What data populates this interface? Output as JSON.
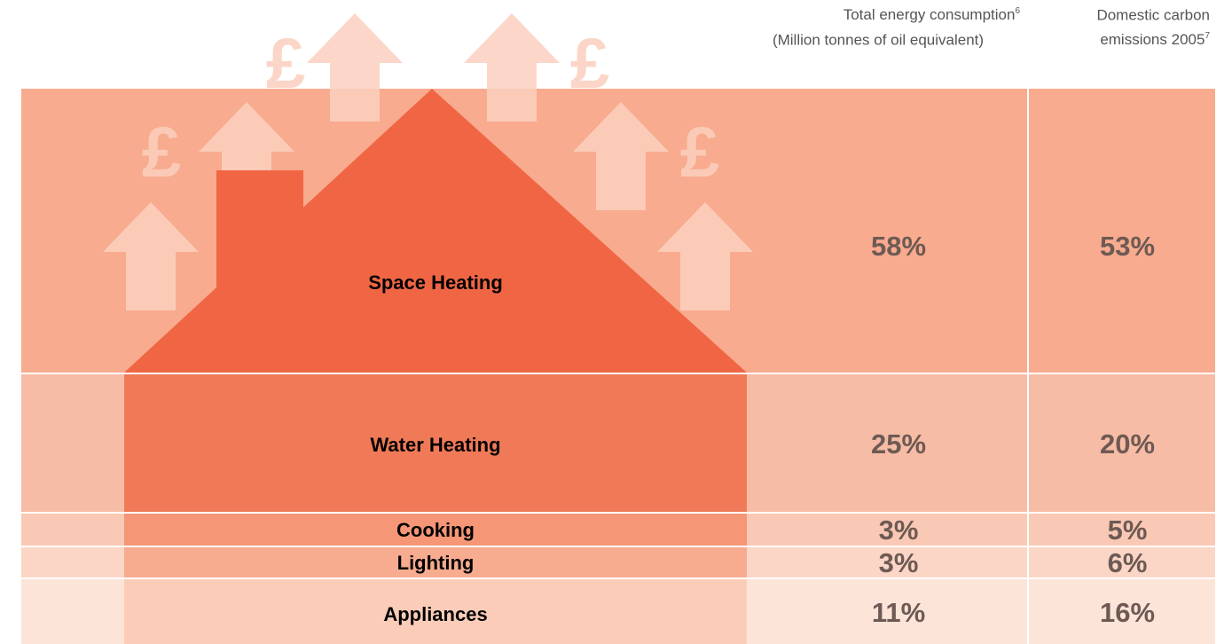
{
  "header": {
    "energy_column": {
      "title": "Total energy consumption",
      "footnote": "6",
      "subtitle": "(Million tonnes of oil equivalent)"
    },
    "emissions_column": {
      "title": "Domestic carbon",
      "subtitle": "emissions 2005",
      "footnote": "7"
    }
  },
  "decoration": {
    "currency_symbol": "£"
  },
  "table": {
    "rows": [
      [
        "Space Heating",
        "58%",
        "53%"
      ],
      [
        "Water Heating",
        "25%",
        "20%"
      ],
      [
        "Cooking",
        "3%",
        "5%"
      ],
      [
        "Lighting",
        "3%",
        "6%"
      ],
      [
        "Appliances",
        "11%",
        "16%"
      ]
    ]
  }
}
